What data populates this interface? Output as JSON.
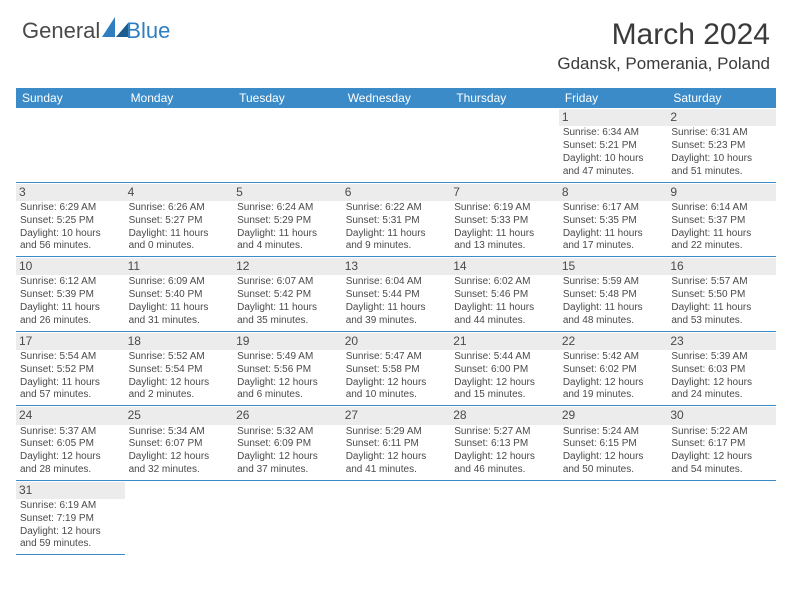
{
  "logo": {
    "part1": "General",
    "part2": "Blue"
  },
  "title": "March 2024",
  "location": "Gdansk, Pomerania, Poland",
  "colors": {
    "header_bg": "#3b8bc8",
    "header_text": "#ffffff",
    "daynum_bg": "#ececec",
    "body_text": "#4a4a4a",
    "rule": "#3b8bc8",
    "page_bg": "#ffffff"
  },
  "weekdays": [
    "Sunday",
    "Monday",
    "Tuesday",
    "Wednesday",
    "Thursday",
    "Friday",
    "Saturday"
  ],
  "weeks": [
    [
      null,
      null,
      null,
      null,
      null,
      {
        "day": "1",
        "sunrise": "Sunrise: 6:34 AM",
        "sunset": "Sunset: 5:21 PM",
        "dl1": "Daylight: 10 hours",
        "dl2": "and 47 minutes."
      },
      {
        "day": "2",
        "sunrise": "Sunrise: 6:31 AM",
        "sunset": "Sunset: 5:23 PM",
        "dl1": "Daylight: 10 hours",
        "dl2": "and 51 minutes."
      }
    ],
    [
      {
        "day": "3",
        "sunrise": "Sunrise: 6:29 AM",
        "sunset": "Sunset: 5:25 PM",
        "dl1": "Daylight: 10 hours",
        "dl2": "and 56 minutes."
      },
      {
        "day": "4",
        "sunrise": "Sunrise: 6:26 AM",
        "sunset": "Sunset: 5:27 PM",
        "dl1": "Daylight: 11 hours",
        "dl2": "and 0 minutes."
      },
      {
        "day": "5",
        "sunrise": "Sunrise: 6:24 AM",
        "sunset": "Sunset: 5:29 PM",
        "dl1": "Daylight: 11 hours",
        "dl2": "and 4 minutes."
      },
      {
        "day": "6",
        "sunrise": "Sunrise: 6:22 AM",
        "sunset": "Sunset: 5:31 PM",
        "dl1": "Daylight: 11 hours",
        "dl2": "and 9 minutes."
      },
      {
        "day": "7",
        "sunrise": "Sunrise: 6:19 AM",
        "sunset": "Sunset: 5:33 PM",
        "dl1": "Daylight: 11 hours",
        "dl2": "and 13 minutes."
      },
      {
        "day": "8",
        "sunrise": "Sunrise: 6:17 AM",
        "sunset": "Sunset: 5:35 PM",
        "dl1": "Daylight: 11 hours",
        "dl2": "and 17 minutes."
      },
      {
        "day": "9",
        "sunrise": "Sunrise: 6:14 AM",
        "sunset": "Sunset: 5:37 PM",
        "dl1": "Daylight: 11 hours",
        "dl2": "and 22 minutes."
      }
    ],
    [
      {
        "day": "10",
        "sunrise": "Sunrise: 6:12 AM",
        "sunset": "Sunset: 5:39 PM",
        "dl1": "Daylight: 11 hours",
        "dl2": "and 26 minutes."
      },
      {
        "day": "11",
        "sunrise": "Sunrise: 6:09 AM",
        "sunset": "Sunset: 5:40 PM",
        "dl1": "Daylight: 11 hours",
        "dl2": "and 31 minutes."
      },
      {
        "day": "12",
        "sunrise": "Sunrise: 6:07 AM",
        "sunset": "Sunset: 5:42 PM",
        "dl1": "Daylight: 11 hours",
        "dl2": "and 35 minutes."
      },
      {
        "day": "13",
        "sunrise": "Sunrise: 6:04 AM",
        "sunset": "Sunset: 5:44 PM",
        "dl1": "Daylight: 11 hours",
        "dl2": "and 39 minutes."
      },
      {
        "day": "14",
        "sunrise": "Sunrise: 6:02 AM",
        "sunset": "Sunset: 5:46 PM",
        "dl1": "Daylight: 11 hours",
        "dl2": "and 44 minutes."
      },
      {
        "day": "15",
        "sunrise": "Sunrise: 5:59 AM",
        "sunset": "Sunset: 5:48 PM",
        "dl1": "Daylight: 11 hours",
        "dl2": "and 48 minutes."
      },
      {
        "day": "16",
        "sunrise": "Sunrise: 5:57 AM",
        "sunset": "Sunset: 5:50 PM",
        "dl1": "Daylight: 11 hours",
        "dl2": "and 53 minutes."
      }
    ],
    [
      {
        "day": "17",
        "sunrise": "Sunrise: 5:54 AM",
        "sunset": "Sunset: 5:52 PM",
        "dl1": "Daylight: 11 hours",
        "dl2": "and 57 minutes."
      },
      {
        "day": "18",
        "sunrise": "Sunrise: 5:52 AM",
        "sunset": "Sunset: 5:54 PM",
        "dl1": "Daylight: 12 hours",
        "dl2": "and 2 minutes."
      },
      {
        "day": "19",
        "sunrise": "Sunrise: 5:49 AM",
        "sunset": "Sunset: 5:56 PM",
        "dl1": "Daylight: 12 hours",
        "dl2": "and 6 minutes."
      },
      {
        "day": "20",
        "sunrise": "Sunrise: 5:47 AM",
        "sunset": "Sunset: 5:58 PM",
        "dl1": "Daylight: 12 hours",
        "dl2": "and 10 minutes."
      },
      {
        "day": "21",
        "sunrise": "Sunrise: 5:44 AM",
        "sunset": "Sunset: 6:00 PM",
        "dl1": "Daylight: 12 hours",
        "dl2": "and 15 minutes."
      },
      {
        "day": "22",
        "sunrise": "Sunrise: 5:42 AM",
        "sunset": "Sunset: 6:02 PM",
        "dl1": "Daylight: 12 hours",
        "dl2": "and 19 minutes."
      },
      {
        "day": "23",
        "sunrise": "Sunrise: 5:39 AM",
        "sunset": "Sunset: 6:03 PM",
        "dl1": "Daylight: 12 hours",
        "dl2": "and 24 minutes."
      }
    ],
    [
      {
        "day": "24",
        "sunrise": "Sunrise: 5:37 AM",
        "sunset": "Sunset: 6:05 PM",
        "dl1": "Daylight: 12 hours",
        "dl2": "and 28 minutes."
      },
      {
        "day": "25",
        "sunrise": "Sunrise: 5:34 AM",
        "sunset": "Sunset: 6:07 PM",
        "dl1": "Daylight: 12 hours",
        "dl2": "and 32 minutes."
      },
      {
        "day": "26",
        "sunrise": "Sunrise: 5:32 AM",
        "sunset": "Sunset: 6:09 PM",
        "dl1": "Daylight: 12 hours",
        "dl2": "and 37 minutes."
      },
      {
        "day": "27",
        "sunrise": "Sunrise: 5:29 AM",
        "sunset": "Sunset: 6:11 PM",
        "dl1": "Daylight: 12 hours",
        "dl2": "and 41 minutes."
      },
      {
        "day": "28",
        "sunrise": "Sunrise: 5:27 AM",
        "sunset": "Sunset: 6:13 PM",
        "dl1": "Daylight: 12 hours",
        "dl2": "and 46 minutes."
      },
      {
        "day": "29",
        "sunrise": "Sunrise: 5:24 AM",
        "sunset": "Sunset: 6:15 PM",
        "dl1": "Daylight: 12 hours",
        "dl2": "and 50 minutes."
      },
      {
        "day": "30",
        "sunrise": "Sunrise: 5:22 AM",
        "sunset": "Sunset: 6:17 PM",
        "dl1": "Daylight: 12 hours",
        "dl2": "and 54 minutes."
      }
    ],
    [
      {
        "day": "31",
        "sunrise": "Sunrise: 6:19 AM",
        "sunset": "Sunset: 7:19 PM",
        "dl1": "Daylight: 12 hours",
        "dl2": "and 59 minutes."
      },
      null,
      null,
      null,
      null,
      null,
      null
    ]
  ]
}
